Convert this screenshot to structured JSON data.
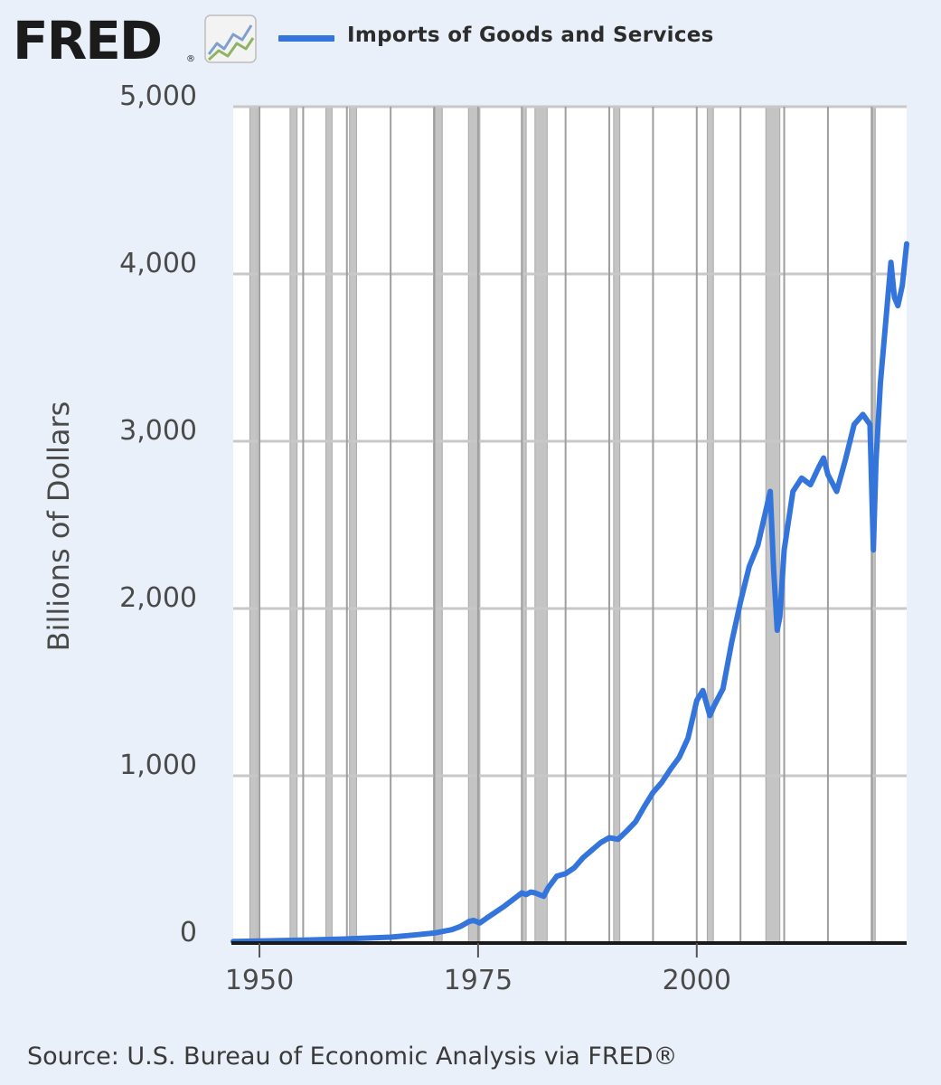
{
  "header": {
    "logo_text": "FRED",
    "logo_mark": "®",
    "logo_icon": "line-graph-icon"
  },
  "source": "Source: U.S. Bureau of Economic Analysis via FRED®",
  "colors": {
    "series": "#3475dc",
    "background": "#e9f0f9",
    "plot_background": "#ffffff",
    "grid": "#c8c8c8",
    "recession": "#c4c4c4"
  },
  "chart_data": {
    "type": "line",
    "title": "",
    "xlabel": "",
    "ylabel": "Billions of Dollars",
    "xlim": [
      1947,
      2024
    ],
    "ylim": [
      0,
      5000
    ],
    "x_ticks": [
      1950,
      1975,
      2000
    ],
    "y_ticks": [
      0,
      1000,
      2000,
      3000,
      4000,
      5000
    ],
    "y_tick_labels": [
      "0",
      "1,000",
      "2,000",
      "3,000",
      "4,000",
      "5,000"
    ],
    "grid": true,
    "legend_position": "top",
    "recessions": [
      [
        1948.9,
        1949.8
      ],
      [
        1953.5,
        1954.3
      ],
      [
        1957.6,
        1958.3
      ],
      [
        1960.3,
        1961.1
      ],
      [
        1969.9,
        1970.9
      ],
      [
        1973.9,
        1975.2
      ],
      [
        1980.0,
        1980.5
      ],
      [
        1981.5,
        1982.9
      ],
      [
        1990.5,
        1991.2
      ],
      [
        2001.2,
        2001.9
      ],
      [
        2007.9,
        2009.5
      ],
      [
        2020.1,
        2020.4
      ]
    ],
    "series": [
      {
        "name": "Imports of Goods and Services",
        "x": [
          1947,
          1950,
          1955,
          1960,
          1965,
          1968,
          1970,
          1972,
          1973,
          1974,
          1974.5,
          1975.2,
          1976,
          1977,
          1978,
          1979,
          1980,
          1980.5,
          1981,
          1981.5,
          1982,
          1982.5,
          1983,
          1984,
          1985,
          1986,
          1987,
          1988,
          1989,
          1990,
          1991,
          1992,
          1993,
          1994,
          1995,
          1996,
          1997,
          1998,
          1999,
          2000,
          2000.7,
          2001.5,
          2002,
          2003,
          2004,
          2005,
          2006,
          2007,
          2008.4,
          2008.8,
          2009.2,
          2009.5,
          2010,
          2011,
          2012,
          2013,
          2014,
          2014.5,
          2015,
          2016,
          2017,
          2018,
          2019,
          2019.8,
          2020.2,
          2020.5,
          2021,
          2022.2,
          2022.6,
          2023,
          2023.5,
          2024
        ],
        "y": [
          10,
          12,
          18,
          25,
          35,
          50,
          60,
          80,
          100,
          130,
          135,
          120,
          150,
          185,
          220,
          260,
          300,
          290,
          305,
          300,
          290,
          280,
          330,
          400,
          415,
          450,
          510,
          555,
          600,
          630,
          620,
          670,
          725,
          815,
          900,
          960,
          1040,
          1110,
          1225,
          1450,
          1510,
          1360,
          1420,
          1520,
          1800,
          2040,
          2250,
          2380,
          2700,
          2230,
          1870,
          1950,
          2350,
          2700,
          2780,
          2740,
          2850,
          2900,
          2800,
          2700,
          2890,
          3100,
          3160,
          3100,
          2350,
          2880,
          3350,
          4070,
          3860,
          3810,
          3930,
          4180
        ]
      }
    ]
  }
}
